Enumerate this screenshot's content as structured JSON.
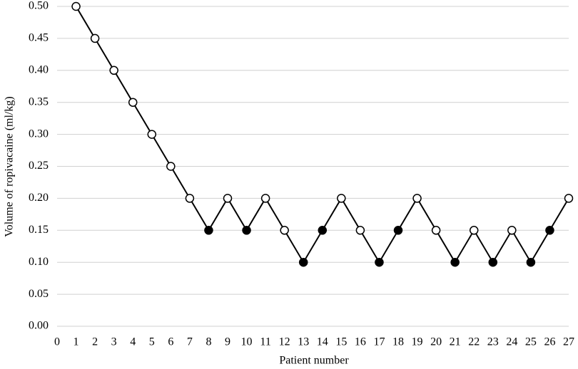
{
  "chart_data": {
    "type": "line",
    "x_label": "Patient number",
    "y_label": "Volume of ropivacaine  (ml/kg)",
    "x": [
      1,
      2,
      3,
      4,
      5,
      6,
      7,
      8,
      9,
      10,
      11,
      12,
      13,
      14,
      15,
      16,
      17,
      18,
      19,
      20,
      21,
      22,
      23,
      24,
      25,
      26,
      27
    ],
    "y": [
      0.5,
      0.45,
      0.4,
      0.35,
      0.3,
      0.25,
      0.2,
      0.15,
      0.2,
      0.15,
      0.2,
      0.15,
      0.1,
      0.15,
      0.2,
      0.15,
      0.1,
      0.15,
      0.2,
      0.15,
      0.1,
      0.15,
      0.1,
      0.15,
      0.1,
      0.15,
      0.2
    ],
    "filled": [
      false,
      false,
      false,
      false,
      false,
      false,
      false,
      true,
      false,
      true,
      false,
      false,
      true,
      true,
      false,
      false,
      true,
      true,
      false,
      false,
      true,
      false,
      true,
      false,
      true,
      true,
      false
    ],
    "color": "#000000",
    "xlim": [
      0,
      27
    ],
    "xticks": [
      0,
      1,
      2,
      3,
      4,
      5,
      6,
      7,
      8,
      9,
      10,
      11,
      12,
      13,
      14,
      15,
      16,
      17,
      18,
      19,
      20,
      21,
      22,
      23,
      24,
      25,
      26,
      27
    ],
    "ylim": [
      0,
      0.5
    ],
    "yticks": [
      {
        "value": 0,
        "label": "0.00"
      },
      0.05,
      {
        "value": 0.1,
        "label": "0.10"
      },
      0.15,
      {
        "value": 0.2,
        "label": "0.20"
      },
      0.25,
      {
        "value": 0.3,
        "label": "0.30"
      },
      0.35,
      {
        "value": 0.4,
        "label": "0.40"
      },
      0.45,
      {
        "value": 0.5,
        "label": "0.50"
      }
    ],
    "grid": true
  }
}
